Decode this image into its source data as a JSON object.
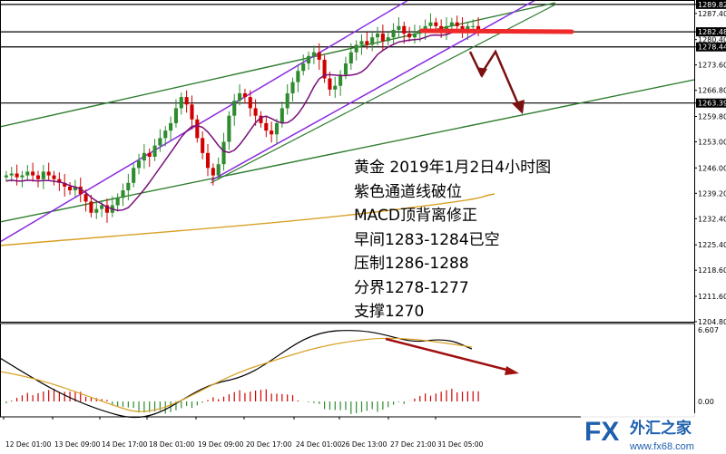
{
  "chart_data": {
    "type": "candlestick",
    "instrument": "黄金",
    "timeframe": "4小时",
    "annotation_lines": [
      "黄金 2019年1月2日4小时图",
      "紫色通道线破位",
      "MACD顶背离修正",
      "早间1283-1284已空",
      "压制1286-1288",
      "分界1278-1277",
      "支撑1270"
    ],
    "price_axis_ticks": [
      "1289.82",
      "1287.40",
      "1282.48",
      "1280.40",
      "1278.44",
      "1273.60",
      "1266.80",
      "1263.39",
      "1259.80",
      "1253.00",
      "1246.00",
      "1239.20",
      "1232.40",
      "1225.40",
      "1218.60",
      "1211.60",
      "1204.80"
    ],
    "highlighted_levels": [
      "1289.82",
      "1282.48",
      "1278.44",
      "1263.39"
    ],
    "ylim": [
      1204.8,
      1291
    ],
    "macd_axis_ticks": [
      "6.607",
      "0.00"
    ],
    "x_tick_labels": [
      "12 Dec 01:00",
      "13 Dec 09:00",
      "14 Dec 17:00",
      "18 Dec 01:00",
      "19 Dec 09:00",
      "20 Dec 17:00",
      "24 Dec 01:00",
      "26 Dec 13:00",
      "27 Dec 21:00",
      "31 Dec 05:00"
    ],
    "close_prices": [
      1244,
      1244.5,
      1243.5,
      1244,
      1245,
      1244,
      1243,
      1245,
      1244,
      1243,
      1242,
      1241,
      1240,
      1241,
      1239,
      1237,
      1234,
      1235,
      1236,
      1234,
      1236,
      1238,
      1240,
      1242,
      1246,
      1248,
      1250,
      1249,
      1252,
      1254,
      1256,
      1258,
      1262,
      1265,
      1263,
      1259,
      1254,
      1250,
      1246,
      1244,
      1247,
      1253,
      1260,
      1264,
      1266,
      1265,
      1262,
      1260,
      1258,
      1256,
      1255,
      1258,
      1262,
      1266,
      1269,
      1272,
      1274,
      1276,
      1277,
      1275,
      1270,
      1267,
      1268,
      1271,
      1274,
      1277,
      1279,
      1280,
      1279,
      1281,
      1282,
      1280,
      1281,
      1283,
      1284,
      1282,
      1281,
      1282,
      1283,
      1284,
      1285,
      1284,
      1283,
      1284,
      1285,
      1284,
      1283,
      1284,
      1284,
      1283
    ],
    "legend": "none",
    "grid": false
  },
  "branding": {
    "logo_fx": "FX",
    "logo_cn": "外汇之家",
    "logo_url": "www.fx68.com"
  }
}
